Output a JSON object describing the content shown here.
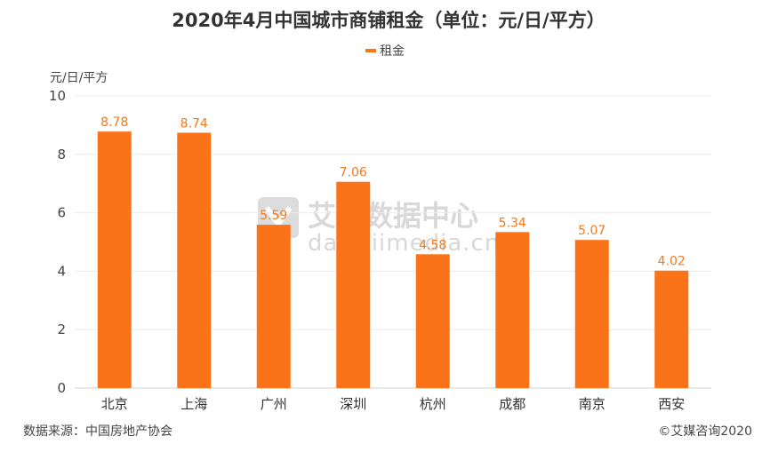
{
  "title": "2020年4月中国城市商铺租金（单位：元/日/平方）",
  "legend": {
    "label": "租金",
    "color": "#fb7318"
  },
  "unit_label": "元/日/平方",
  "source": "数据来源：中国房地产协会",
  "copyright": "©艾媒咨询2020",
  "watermark": {
    "cn": "艾媒数据中心",
    "en": "data.iimedia.cn"
  },
  "chart_data": {
    "type": "bar",
    "title": "2020年4月中国城市商铺租金（单位：元/日/平方）",
    "categories": [
      "北京",
      "上海",
      "广州",
      "深圳",
      "杭州",
      "成都",
      "南京",
      "西安"
    ],
    "series": [
      {
        "name": "租金",
        "values": [
          8.78,
          8.74,
          5.59,
          7.06,
          4.58,
          5.34,
          5.07,
          4.02
        ]
      }
    ],
    "ylabel": "元/日/平方",
    "ylim": [
      0,
      10
    ],
    "yticks": [
      0,
      2,
      4,
      6,
      8,
      10
    ],
    "grid": true,
    "legend_position": "top-center",
    "bar_color": "#fb7318",
    "label_color": "#f07a1e"
  }
}
